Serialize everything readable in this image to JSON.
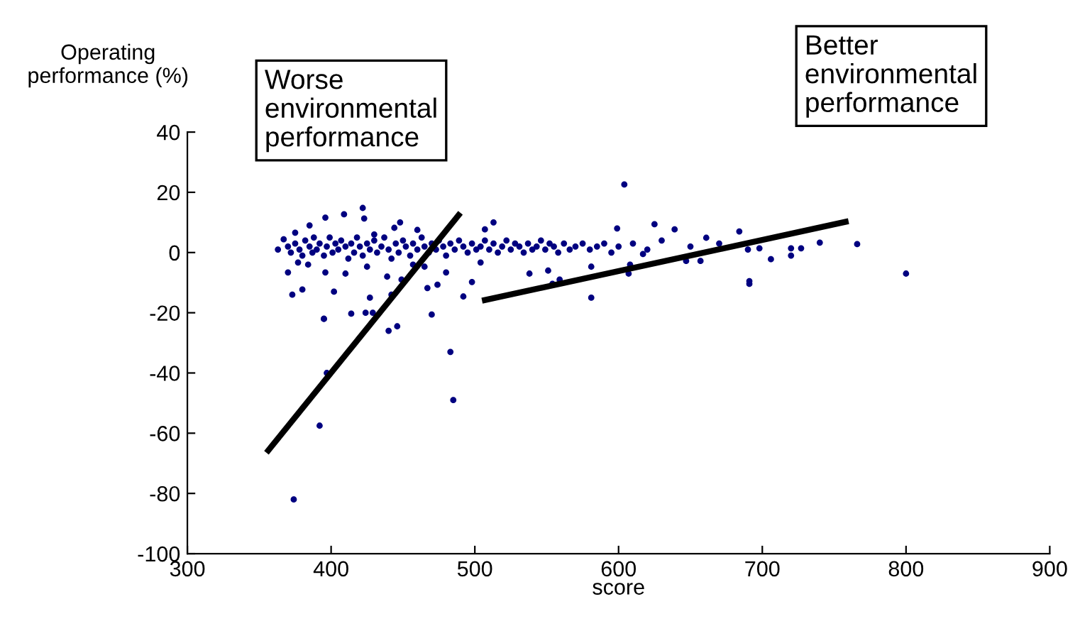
{
  "chart_data": {
    "type": "scatter",
    "xlabel": "score",
    "ylabel": "Operating performance (%)",
    "annotations": [
      "Worse\nenvironmental\nperformance",
      "Better\nenvironmental\nperformance"
    ],
    "xlim": [
      300,
      900
    ],
    "xticks": [
      300,
      400,
      500,
      600,
      700,
      800,
      900
    ],
    "ylim": [
      -100,
      40
    ],
    "yticks": [
      -100,
      -80,
      -60,
      -40,
      -20,
      0,
      20,
      40
    ],
    "grid": false,
    "legend": false,
    "marker": "circle",
    "series": [
      {
        "color": "#000080",
        "x": [
          374,
          392,
          397,
          395,
          483,
          485,
          440,
          446,
          470,
          414,
          424,
          429,
          604,
          422,
          800,
          691,
          691,
          581,
          625,
          639,
          684,
          599,
          706,
          740,
          766,
          727,
          720,
          720,
          698,
          647,
          657,
          661,
          617,
          607,
          608,
          581,
          554,
          559,
          551,
          538,
          363,
          367,
          370,
          373,
          380,
          377,
          385,
          384,
          396,
          409,
          423,
          402,
          395,
          396,
          410,
          425,
          427,
          439,
          442,
          449,
          444,
          448,
          460,
          467,
          474,
          480,
          492,
          498,
          513,
          507,
          504,
          465,
          457,
          430,
          375,
          370,
          372,
          375,
          378,
          380,
          382,
          385,
          387,
          388,
          390,
          392,
          395,
          397,
          399,
          401,
          403,
          405,
          407,
          410,
          412,
          414,
          416,
          418,
          420,
          422,
          425,
          427,
          430,
          432,
          435,
          437,
          440,
          442,
          445,
          447,
          450,
          452,
          455,
          457,
          460,
          463,
          465,
          468,
          470,
          473,
          475,
          478,
          480,
          483,
          486,
          489,
          492,
          495,
          498,
          501,
          504,
          507,
          510,
          513,
          516,
          519,
          522,
          525,
          528,
          531,
          534,
          537,
          540,
          543,
          546,
          549,
          552,
          555,
          558,
          562,
          566,
          570,
          575,
          580,
          585,
          590,
          595,
          600,
          610,
          620,
          630,
          650,
          670,
          690
        ],
        "values": [
          -82,
          -57.5,
          -40,
          -22,
          -33,
          -49,
          -26,
          -24.5,
          -20.6,
          -20.3,
          -20,
          -20,
          22.6,
          14.8,
          -7,
          -10.4,
          -9.5,
          -15,
          9.4,
          7.7,
          7,
          8,
          -2.2,
          3.3,
          2.8,
          1.4,
          -1,
          1.4,
          1.4,
          -2.8,
          -2.8,
          4.9,
          -0.5,
          -7,
          -4,
          -4.7,
          -10.4,
          -9,
          -6,
          -7,
          1,
          4.4,
          -6.6,
          -14,
          -12.3,
          -3.3,
          9,
          -4,
          11.6,
          12.7,
          11.3,
          -13,
          -22,
          -6.6,
          -7,
          -4.7,
          -15,
          -8,
          -14,
          -9,
          8.2,
          10,
          7.5,
          -11.8,
          -10.7,
          -6.6,
          -14.6,
          -9.8,
          10,
          7.7,
          -3.3,
          -4.7,
          -4,
          6,
          6.6,
          2,
          0,
          3,
          1,
          -1,
          4,
          2,
          0,
          5,
          1,
          3,
          -1,
          2,
          5,
          0,
          3,
          1,
          4,
          2,
          -2,
          3,
          0,
          5,
          2,
          -1,
          3,
          1,
          4,
          0,
          2,
          5,
          1,
          -2,
          3,
          0,
          4,
          2,
          -1,
          3,
          1,
          5,
          2,
          0,
          3,
          1,
          4,
          2,
          -1,
          3,
          1,
          4,
          2,
          0,
          3,
          1,
          2,
          4,
          1,
          3,
          0,
          2,
          4,
          1,
          3,
          2,
          0,
          3,
          1,
          2,
          4,
          1,
          3,
          2,
          0,
          3,
          1,
          2,
          3,
          1,
          2,
          3,
          0,
          2,
          3,
          1,
          4,
          2,
          3,
          1
        ]
      },
      {
        "type": "line",
        "color": "#000000",
        "line_style": "solid",
        "marker": "none",
        "x": [
          355,
          490
        ],
        "values": [
          -66.5,
          13.2
        ]
      },
      {
        "type": "line",
        "color": "#000000",
        "line_style": "solid",
        "marker": "none",
        "x": [
          505,
          760
        ],
        "values": [
          -16,
          10.4
        ]
      }
    ]
  }
}
